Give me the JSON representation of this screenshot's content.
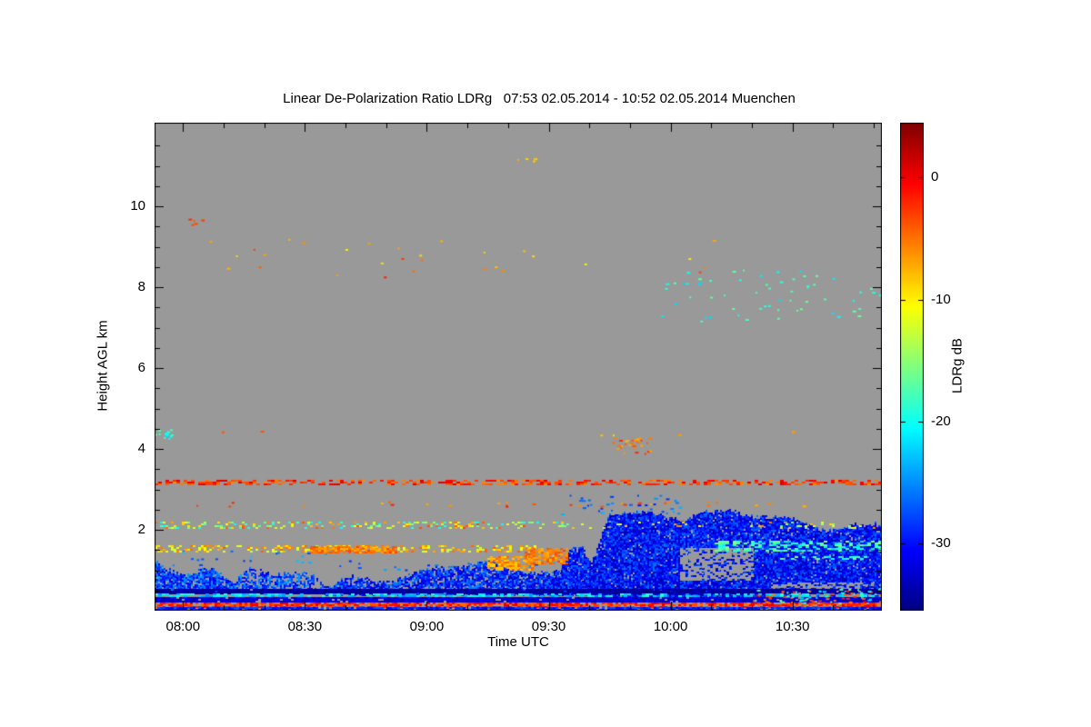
{
  "chart_data": {
    "type": "heatmap",
    "title": "Linear De-Polarization Ratio LDRg   07:53 02.05.2014 - 10:52 02.05.2014 Muenchen",
    "xlabel": "Time UTC",
    "ylabel": "Height AGL km",
    "colorbar_label": "LDRg dB",
    "colormap": "jet",
    "no_data_color": "#999999",
    "station": "Muenchen",
    "date": "02.05.2014",
    "time_start": "07:53",
    "time_end": "10:52",
    "x_range_hours": [
      7.8833,
      10.8667
    ],
    "x_ticks": [
      {
        "hour": 8.0,
        "label": "08:00"
      },
      {
        "hour": 8.5,
        "label": "08:30"
      },
      {
        "hour": 9.0,
        "label": "09:00"
      },
      {
        "hour": 9.5,
        "label": "09:30"
      },
      {
        "hour": 10.0,
        "label": "10:00"
      },
      {
        "hour": 10.5,
        "label": "10:30"
      }
    ],
    "x_minor_interval_hours": 0.166667,
    "y_range_km": [
      0,
      12.07
    ],
    "y_ticks": [
      2,
      4,
      6,
      8,
      10
    ],
    "y_minor_interval_km": 0.5,
    "value_range_db": [
      -35.5,
      4.5
    ],
    "colorbar_ticks": [
      0,
      -10,
      -20,
      -30
    ],
    "legend_position": "right",
    "grid": false,
    "features": [
      {
        "name": "boundary-layer-cloud-left",
        "kind": "cloud",
        "t": [
          7.8833,
          8.22
        ],
        "h0": 0.45,
        "top_base": 1.15,
        "top_amp": 0.28,
        "value": [
          -32,
          -24
        ],
        "cover": 0.88,
        "seed": 1
      },
      {
        "name": "boundary-layer-cloud-left2",
        "kind": "cloud",
        "t": [
          8.18,
          8.62
        ],
        "h0": 0.45,
        "top_base": 0.8,
        "top_amp": 0.3,
        "value": [
          -32,
          -24
        ],
        "cover": 0.6,
        "seed": 2
      },
      {
        "name": "boundary-layer-cloud-mid",
        "kind": "cloud",
        "t": [
          8.58,
          9.72
        ],
        "h0": 0.4,
        "top_base": 0.95,
        "top_amp": 0.28,
        "value": [
          -33,
          -25
        ],
        "cover": 0.82,
        "seed": 3
      },
      {
        "name": "cloud-rise",
        "kind": "cloud",
        "t": [
          9.5,
          9.72
        ],
        "h0": 0.4,
        "top_base": 1.6,
        "top_amp": 0.35,
        "value": [
          -33,
          -26
        ],
        "cover": 0.85,
        "seed": 4
      },
      {
        "name": "main-cloud-right",
        "kind": "cloud",
        "t": [
          9.66,
          10.8667
        ],
        "h0": 0.35,
        "top_base": 2.3,
        "top_amp": 0.32,
        "value": [
          -34,
          -26
        ],
        "cover": 0.95,
        "seed": 5
      },
      {
        "name": "gray-gap-in-cloud",
        "kind": "erase",
        "t": [
          10.04,
          10.34
        ],
        "h": [
          0.75,
          1.55
        ],
        "cover": 0.7,
        "cell": 3,
        "seed": 6
      },
      {
        "name": "gray-gap-bottom-right",
        "kind": "erase",
        "t": [
          10.42,
          10.8667
        ],
        "h": [
          0.15,
          0.7
        ],
        "cover": 0.55,
        "cell": 3,
        "seed": 7
      },
      {
        "name": "cyan-streak-right-cloud",
        "kind": "band",
        "t": [
          10.18,
          10.8667
        ],
        "h": [
          1.45,
          1.72
        ],
        "value": [
          -22,
          -15
        ],
        "cover": 0.45,
        "cell": 4,
        "seed": 8
      },
      {
        "name": "cyan-streak-right-cloud2",
        "kind": "band",
        "t": [
          10.42,
          10.8
        ],
        "h": [
          1.25,
          1.35
        ],
        "value": [
          -21,
          -16
        ],
        "cover": 0.3,
        "cell": 4,
        "seed": 9
      },
      {
        "name": "detached-specks-left",
        "kind": "speckle",
        "t": [
          7.8833,
          8.7
        ],
        "h": [
          1.05,
          1.5
        ],
        "value": [
          -30,
          -22
        ],
        "density": 0.05,
        "seed": 10
      },
      {
        "name": "detached-specks-mid",
        "kind": "speckle",
        "t": [
          8.7,
          9.6
        ],
        "h": [
          0.95,
          1.25
        ],
        "value": [
          -30,
          -23
        ],
        "density": 0.06,
        "seed": 11
      },
      {
        "name": "cloud-fragments-above-right",
        "kind": "speckle",
        "t": [
          9.55,
          10.05
        ],
        "h": [
          2.35,
          2.9
        ],
        "value": [
          -30,
          -23
        ],
        "density": 0.1,
        "seed": 12
      },
      {
        "name": "aerosol-layer-3p2km",
        "kind": "band",
        "t": [
          7.8833,
          10.8667
        ],
        "h": [
          3.13,
          3.24
        ],
        "value": [
          -6,
          1
        ],
        "cover": 0.5,
        "cell": 4,
        "seed": 13
      },
      {
        "name": "sparse-layer-2p6km",
        "kind": "speckle",
        "t": [
          7.9,
          10.6
        ],
        "h": [
          2.55,
          2.72
        ],
        "value": [
          -8,
          -1
        ],
        "density": 0.05,
        "seed": 14
      },
      {
        "name": "mixed-layer-2p1km",
        "kind": "band",
        "t": [
          7.8833,
          9.6
        ],
        "h": [
          2.05,
          2.2
        ],
        "value": [
          -21,
          -3
        ],
        "cover": 0.28,
        "cell": 3,
        "seed": 15
      },
      {
        "name": "mixed-layer-2p1km-sparse",
        "kind": "band",
        "t": [
          9.6,
          10.8667
        ],
        "h": [
          2.05,
          2.2
        ],
        "value": [
          -18,
          -4
        ],
        "cover": 0.1,
        "cell": 3,
        "seed": 16
      },
      {
        "name": "aerosol-layer-1p5km",
        "kind": "band",
        "t": [
          7.8833,
          9.45
        ],
        "h": [
          1.45,
          1.62
        ],
        "value": [
          -13,
          -4
        ],
        "cover": 0.38,
        "cell": 3,
        "seed": 17
      },
      {
        "name": "aerosol-layer-1p5km-bright",
        "kind": "band",
        "t": [
          8.52,
          8.88
        ],
        "h": [
          1.44,
          1.6
        ],
        "value": [
          -8,
          -3
        ],
        "cover": 0.85,
        "cell": 3,
        "seed": 18
      },
      {
        "name": "drizzle-orange-blob1",
        "kind": "band",
        "t": [
          9.25,
          9.44
        ],
        "h": [
          1.0,
          1.35
        ],
        "value": [
          -9,
          -4
        ],
        "cover": 0.8,
        "cell": 3,
        "seed": 19
      },
      {
        "name": "drizzle-orange-blob2",
        "kind": "band",
        "t": [
          9.4,
          9.58
        ],
        "h": [
          1.18,
          1.55
        ],
        "value": [
          -8,
          -3
        ],
        "cover": 0.7,
        "cell": 3,
        "seed": 20
      },
      {
        "name": "midlevel-cluster-4km",
        "kind": "speckle",
        "t": [
          9.76,
          9.92
        ],
        "h": [
          3.85,
          4.3
        ],
        "value": [
          -8,
          -2
        ],
        "density": 0.3,
        "seed": 21
      },
      {
        "name": "sparse-dots-4p35km",
        "kind": "speckle",
        "t": [
          7.95,
          10.8667
        ],
        "h": [
          4.3,
          4.45
        ],
        "value": [
          -11,
          -3
        ],
        "density": 0.012,
        "seed": 22
      },
      {
        "name": "cyan-cluster-left-edge-4p3km",
        "kind": "speckle",
        "t": [
          7.8833,
          7.96
        ],
        "h": [
          4.2,
          4.5
        ],
        "value": [
          -22,
          -17
        ],
        "density": 0.45,
        "seed": 23
      },
      {
        "name": "upper-warm-dots-8to9km",
        "kind": "speckle",
        "t": [
          7.95,
          10.2
        ],
        "h": [
          8.2,
          9.3
        ],
        "value": [
          -10,
          -1
        ],
        "density": 0.009,
        "seed": 24
      },
      {
        "name": "upper-dot-9p6km",
        "kind": "speckle",
        "t": [
          8.0,
          8.12
        ],
        "h": [
          9.5,
          9.7
        ],
        "value": [
          -5,
          -2
        ],
        "density": 0.2,
        "seed": 25
      },
      {
        "name": "upper-dot-11km",
        "kind": "speckle",
        "t": [
          9.36,
          9.46
        ],
        "h": [
          11.0,
          11.2
        ],
        "value": [
          -10,
          -7
        ],
        "density": 0.25,
        "seed": 26
      },
      {
        "name": "cirrus-cyan-cluster-right",
        "kind": "speckle",
        "t": [
          9.9,
          10.8667
        ],
        "h": [
          7.1,
          8.45
        ],
        "value": [
          -22,
          -16
        ],
        "density": 0.035,
        "seed": 27
      },
      {
        "name": "ground-band-navy",
        "kind": "band",
        "t": [
          7.8833,
          10.8667
        ],
        "h": [
          0.42,
          0.55
        ],
        "value": [
          -35.5,
          -33
        ],
        "cover": 0.97,
        "cell": 3,
        "seed": 28
      },
      {
        "name": "ground-band-cyan",
        "kind": "band",
        "t": [
          7.8833,
          10.8667
        ],
        "h": [
          0.34,
          0.42
        ],
        "value": [
          -25,
          -18
        ],
        "cover": 0.5,
        "cell": 4,
        "seed": 29
      },
      {
        "name": "ground-band-blue",
        "kind": "band",
        "t": [
          7.8833,
          10.8667
        ],
        "h": [
          0.2,
          0.34
        ],
        "value": [
          -34,
          -30
        ],
        "cover": 0.95,
        "cell": 3,
        "seed": 30
      },
      {
        "name": "ground-band-orange",
        "kind": "band",
        "t": [
          7.8833,
          10.8667
        ],
        "h": [
          0.1,
          0.2
        ],
        "value": [
          -5,
          1
        ],
        "cover": 0.8,
        "cell": 3,
        "seed": 31
      },
      {
        "name": "ground-band-bottom-blue",
        "kind": "band",
        "t": [
          7.8833,
          10.8667
        ],
        "h": [
          0.0,
          0.1
        ],
        "value": [
          -32,
          -27
        ],
        "cover": 0.9,
        "cell": 3,
        "seed": 32
      },
      {
        "name": "bottom-right-warm-speckle",
        "kind": "speckle",
        "t": [
          10.3,
          10.8667
        ],
        "h": [
          0.1,
          0.5
        ],
        "value": [
          -6,
          0
        ],
        "density": 0.2,
        "seed": 33
      },
      {
        "name": "bottom-right-cyan-speckle",
        "kind": "speckle",
        "t": [
          10.3,
          10.8667
        ],
        "h": [
          0.15,
          0.55
        ],
        "value": [
          -22,
          -15
        ],
        "density": 0.12,
        "seed": 34
      }
    ]
  }
}
